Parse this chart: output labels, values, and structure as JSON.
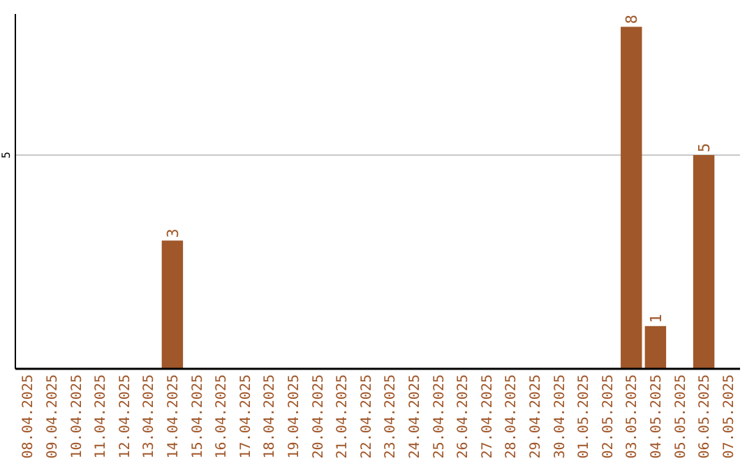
{
  "chart_data": {
    "type": "bar",
    "categories": [
      "08.04.2025",
      "09.04.2025",
      "10.04.2025",
      "11.04.2025",
      "12.04.2025",
      "13.04.2025",
      "14.04.2025",
      "15.04.2025",
      "16.04.2025",
      "17.04.2025",
      "18.04.2025",
      "19.04.2025",
      "20.04.2025",
      "21.04.2025",
      "22.04.2025",
      "23.04.2025",
      "24.04.2025",
      "25.04.2025",
      "26.04.2025",
      "27.04.2025",
      "28.04.2025",
      "29.04.2025",
      "30.04.2025",
      "01.05.2025",
      "02.05.2025",
      "03.05.2025",
      "04.05.2025",
      "05.05.2025",
      "06.05.2025",
      "07.05.2025"
    ],
    "values": [
      0,
      0,
      0,
      0,
      0,
      0,
      3,
      0,
      0,
      0,
      0,
      0,
      0,
      0,
      0,
      0,
      0,
      0,
      0,
      0,
      0,
      0,
      0,
      0,
      0,
      8,
      1,
      0,
      5,
      0
    ],
    "value_labels": [
      null,
      null,
      null,
      null,
      null,
      null,
      "3",
      null,
      null,
      null,
      null,
      null,
      null,
      null,
      null,
      null,
      null,
      null,
      null,
      null,
      null,
      null,
      null,
      null,
      null,
      "8",
      "1",
      null,
      "5",
      null
    ],
    "color": "#a0572a",
    "ylim": [
      0,
      8.3
    ],
    "yticks": [
      5
    ],
    "grid": "y"
  }
}
